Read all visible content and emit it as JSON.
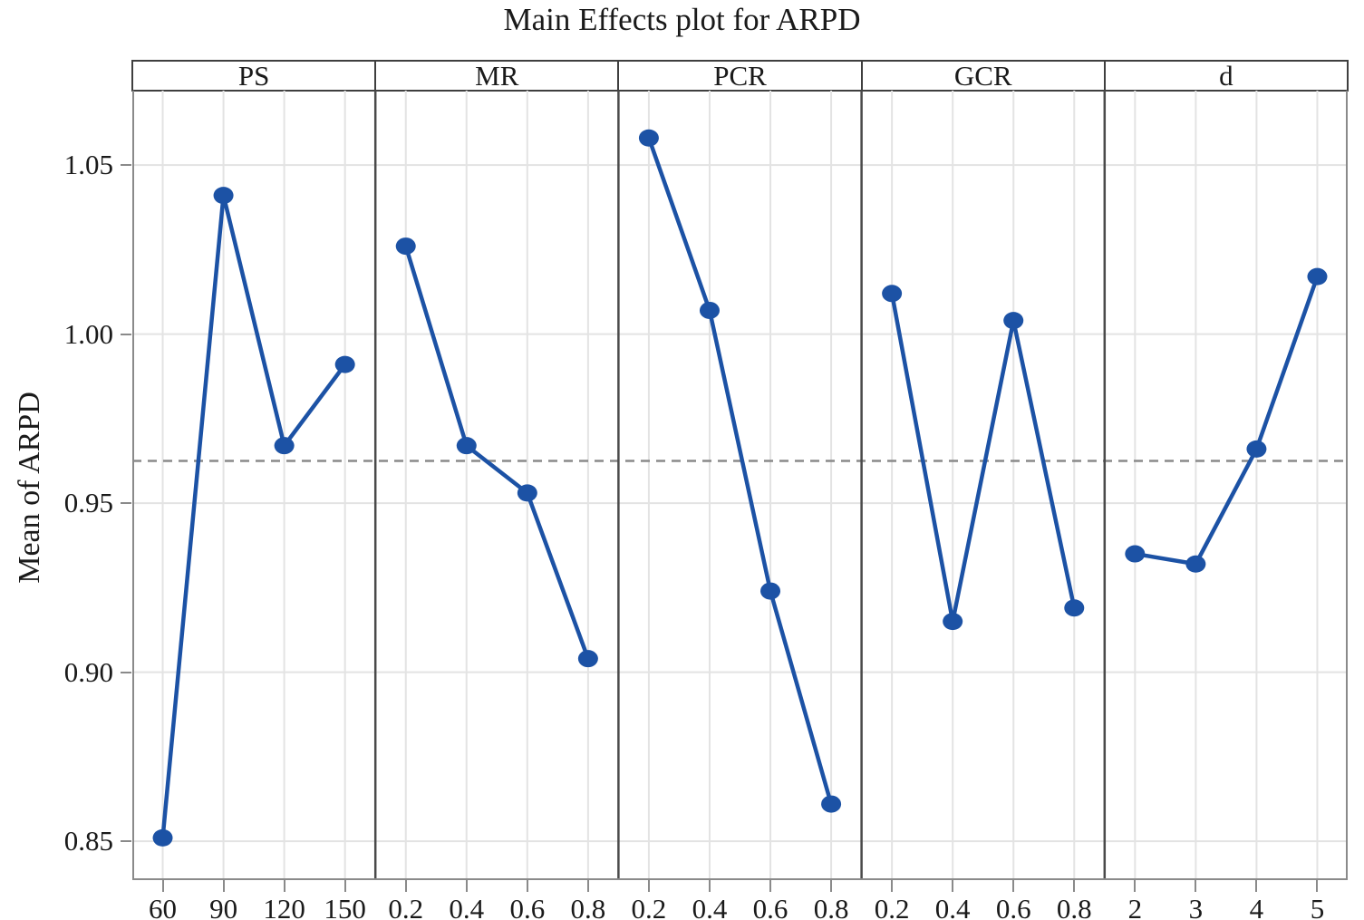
{
  "title": "Main Effects plot for ARPD",
  "y_axis": {
    "label": "Mean of ARPD",
    "ticks": [
      {
        "label": "1.05",
        "value": 1.05
      },
      {
        "label": "1.00",
        "value": 1.0
      },
      {
        "label": "0.95",
        "value": 0.95
      },
      {
        "label": "0.90",
        "value": 0.9
      },
      {
        "label": "0.85",
        "value": 0.85
      }
    ]
  },
  "colors": {
    "series": "#1c52a5",
    "grid": "#e3e3e3",
    "mean_line": "#8a8a8a",
    "frame": "#8a8a8a",
    "panel_border": "#4a4a4a",
    "text": "#1a1a1a"
  },
  "chart_data": {
    "type": "line",
    "title": "Main Effects plot for ARPD",
    "ylabel": "Mean of ARPD",
    "ylim": [
      0.8385,
      1.072
    ],
    "yticks": [
      0.85,
      0.9,
      0.95,
      1.0,
      1.05
    ],
    "grand_mean": 0.9625,
    "grand_mean_style": "dashed",
    "grid": true,
    "legend": "none",
    "panels": [
      {
        "factor": "PS",
        "categories": [
          "60",
          "90",
          "120",
          "150"
        ],
        "values": [
          0.851,
          1.041,
          0.967,
          0.991
        ]
      },
      {
        "factor": "MR",
        "categories": [
          "0.2",
          "0.4",
          "0.6",
          "0.8"
        ],
        "values": [
          1.026,
          0.967,
          0.953,
          0.904
        ]
      },
      {
        "factor": "PCR",
        "categories": [
          "0.2",
          "0.4",
          "0.6",
          "0.8"
        ],
        "values": [
          1.058,
          1.007,
          0.924,
          0.861
        ]
      },
      {
        "factor": "GCR",
        "categories": [
          "0.2",
          "0.4",
          "0.6",
          "0.8"
        ],
        "values": [
          1.012,
          0.915,
          1.004,
          0.919
        ]
      },
      {
        "factor": "d",
        "categories": [
          "2",
          "3",
          "4",
          "5"
        ],
        "values": [
          0.935,
          0.932,
          0.966,
          1.017
        ]
      }
    ]
  }
}
